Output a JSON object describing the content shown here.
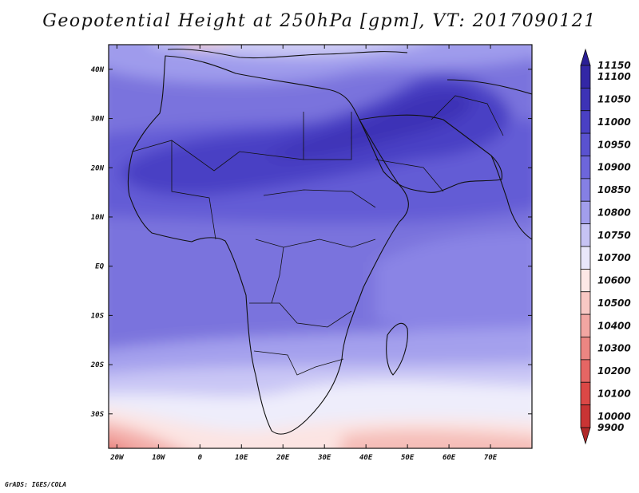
{
  "title": "Geopotential Height at 250hPa [gpm], VT: 2017090121",
  "credit": "GrADS: IGES/COLA",
  "map": {
    "lon_range": [
      -22,
      80
    ],
    "lat_range": [
      -37,
      45
    ],
    "lon_ticks": [
      {
        "value": -20,
        "label": "20W"
      },
      {
        "value": -10,
        "label": "10W"
      },
      {
        "value": 0,
        "label": "0"
      },
      {
        "value": 10,
        "label": "10E"
      },
      {
        "value": 20,
        "label": "20E"
      },
      {
        "value": 30,
        "label": "30E"
      },
      {
        "value": 40,
        "label": "40E"
      },
      {
        "value": 50,
        "label": "50E"
      },
      {
        "value": 60,
        "label": "60E"
      },
      {
        "value": 70,
        "label": "70E"
      }
    ],
    "lat_ticks": [
      {
        "value": 40,
        "label": "40N"
      },
      {
        "value": 30,
        "label": "30N"
      },
      {
        "value": 20,
        "label": "20N"
      },
      {
        "value": 10,
        "label": "10N"
      },
      {
        "value": 0,
        "label": "EQ"
      },
      {
        "value": -10,
        "label": "10S"
      },
      {
        "value": -20,
        "label": "20S"
      },
      {
        "value": -30,
        "label": "30S"
      }
    ]
  },
  "colorbar": {
    "levels": [
      {
        "label": "11150",
        "color": "#2a1f96"
      },
      {
        "label": "11100",
        "color": "#3327a6"
      },
      {
        "label": "11050",
        "color": "#3d33b6"
      },
      {
        "label": "11000",
        "color": "#4a40c4"
      },
      {
        "label": "10950",
        "color": "#5a52d0"
      },
      {
        "label": "10900",
        "color": "#6d66db"
      },
      {
        "label": "10850",
        "color": "#8580e4"
      },
      {
        "label": "10800",
        "color": "#a29eec"
      },
      {
        "label": "10750",
        "color": "#c6c3f4"
      },
      {
        "label": "10700",
        "color": "#e9e7fa"
      },
      {
        "label": "10600",
        "color": "#fde8e6"
      },
      {
        "label": "10500",
        "color": "#f8c8c4"
      },
      {
        "label": "10400",
        "color": "#f2a6a2"
      },
      {
        "label": "10300",
        "color": "#ec8682"
      },
      {
        "label": "10200",
        "color": "#e56664"
      },
      {
        "label": "10100",
        "color": "#dc4846"
      },
      {
        "label": "10000",
        "color": "#c93434"
      },
      {
        "label": "9900",
        "color": "#b02828"
      }
    ]
  }
}
